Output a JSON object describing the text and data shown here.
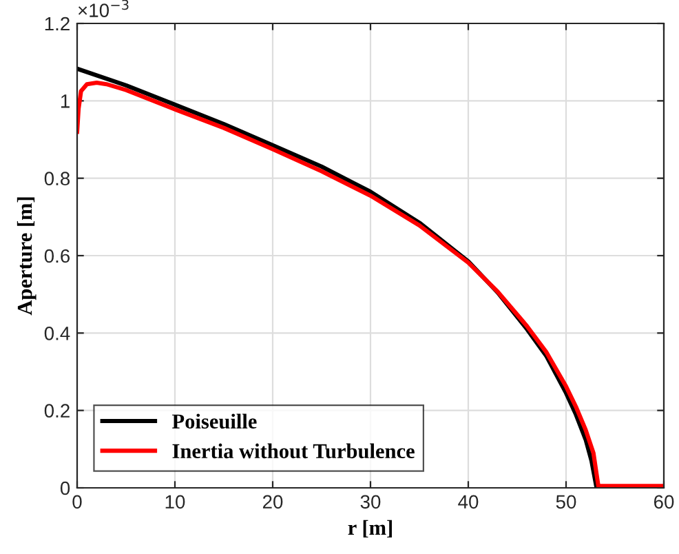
{
  "chart_data": {
    "type": "line",
    "xlabel": "r [m]",
    "ylabel": "Aperture [m]",
    "annotations": [
      "×10$^{−3}$"
    ],
    "xlim": [
      0,
      60
    ],
    "xticks": [
      0,
      10,
      20,
      30,
      40,
      50,
      60
    ],
    "ylim": [
      0,
      1.2
    ],
    "yticks": [
      0,
      0.2,
      0.4,
      0.6,
      0.8,
      1,
      1.2
    ],
    "grid": true,
    "legend": "bottom left",
    "marker": "none",
    "line_style": "solid",
    "series": [
      {
        "name": "Poiseuille",
        "color": "#000000",
        "x": [
          0,
          5,
          10,
          15,
          20,
          25,
          30,
          35,
          40,
          43,
          46,
          48,
          50,
          51,
          52,
          52.6,
          53.1,
          60
        ],
        "values": [
          1.083,
          1.04,
          0.99,
          0.94,
          0.885,
          0.83,
          0.765,
          0.685,
          0.585,
          0.505,
          0.41,
          0.34,
          0.245,
          0.19,
          0.125,
          0.07,
          0.003,
          0.003
        ]
      },
      {
        "name": "Inertia without Turbulence",
        "color": "#ff0000",
        "x": [
          0,
          0.15,
          0.4,
          1,
          2,
          3,
          5,
          10,
          15,
          20,
          25,
          30,
          35,
          40,
          43,
          46,
          48,
          50,
          51,
          52,
          52.8,
          53.3,
          60
        ],
        "values": [
          0.92,
          0.98,
          1.025,
          1.043,
          1.047,
          1.043,
          1.028,
          0.978,
          0.93,
          0.875,
          0.818,
          0.755,
          0.678,
          0.582,
          0.507,
          0.418,
          0.35,
          0.262,
          0.21,
          0.15,
          0.09,
          0.005,
          0.005
        ]
      }
    ]
  }
}
